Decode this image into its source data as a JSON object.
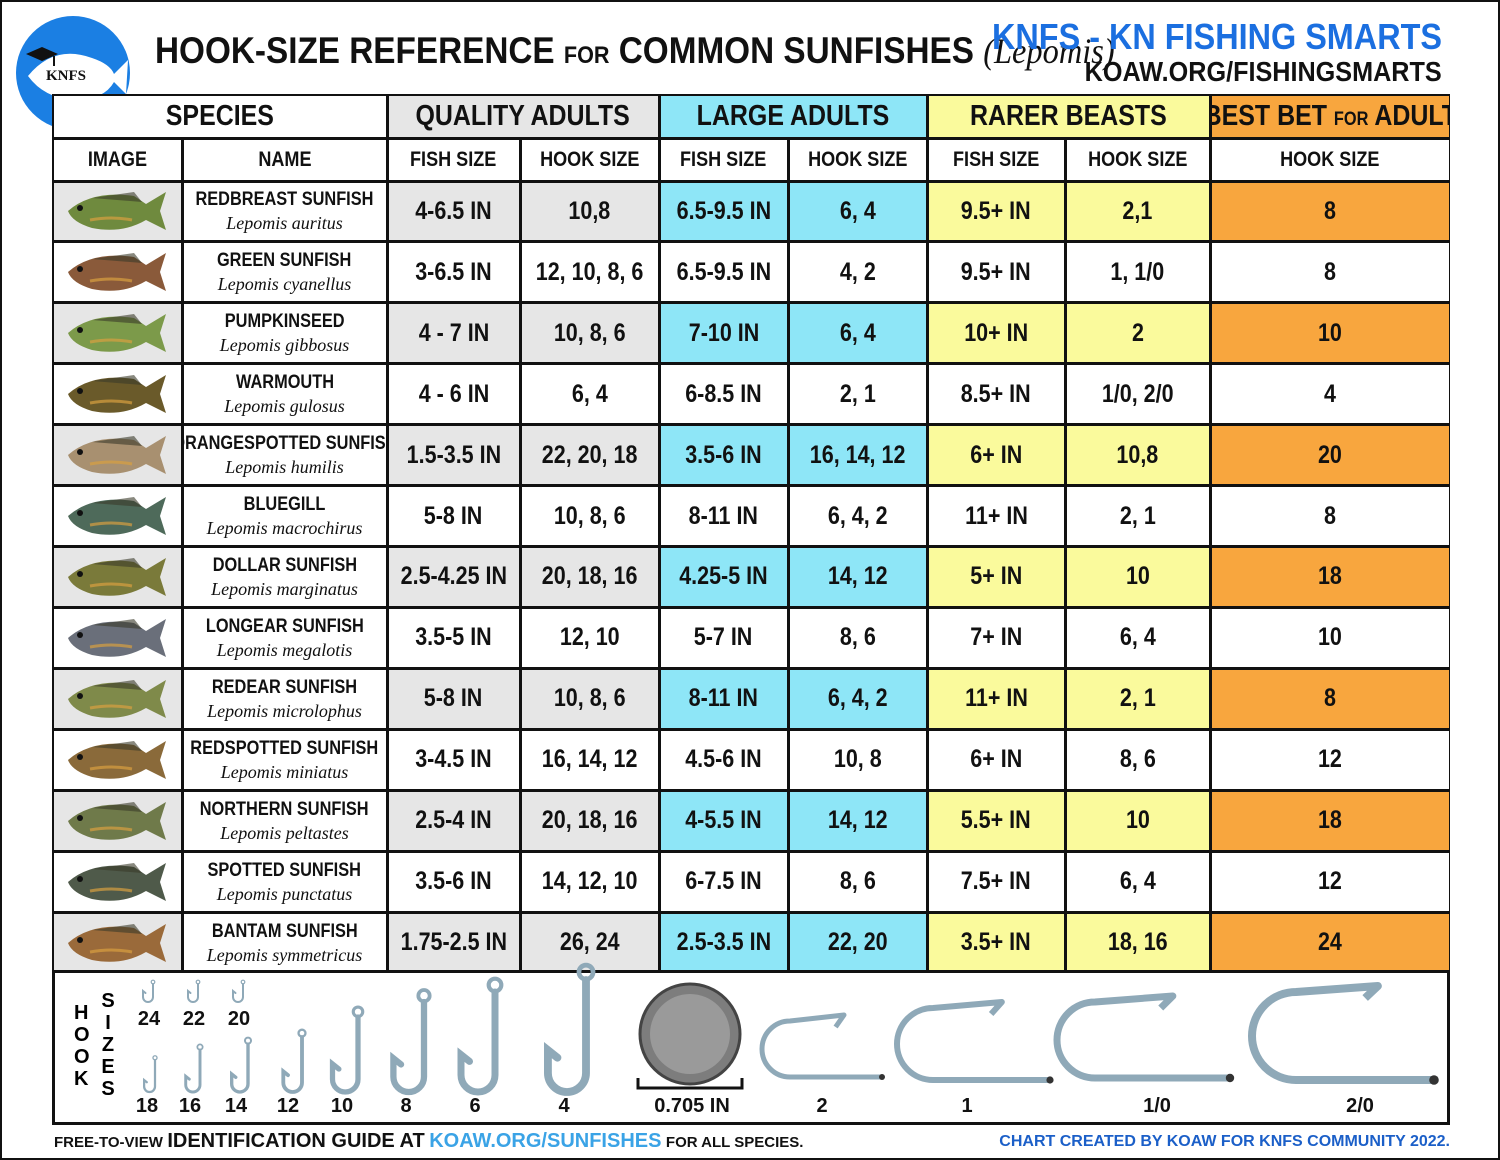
{
  "header": {
    "logo": "KNFS",
    "title_main": "HOOK-SIZE REFERENCE",
    "title_for": "FOR",
    "title_rest": "COMMON SUNFISHES",
    "title_genus": "(Lepomis)",
    "brand": "KNFS - KN FISHING SMARTS",
    "url": "KOAW.ORG/FISHINGSMARTS"
  },
  "table": {
    "groups": [
      "SPECIES",
      "QUALITY ADULTS",
      "LARGE ADULTS",
      "RARER BEASTS",
      {
        "main": "BEST BET",
        "small": "FOR",
        "end": "ADULT"
      }
    ],
    "columns": [
      "IMAGE",
      "NAME",
      "FISH SIZE",
      "HOOK SIZE",
      "FISH SIZE",
      "HOOK SIZE",
      "FISH SIZE",
      "HOOK SIZE",
      "HOOK SIZE"
    ],
    "rows": [
      {
        "name": "REDBREAST SUNFISH",
        "scientific": "Lepomis auritus",
        "cells": [
          "4-6.5 IN",
          "10,8",
          "6.5-9.5 IN",
          "6, 4",
          "9.5+ IN",
          "2,1",
          "8"
        ]
      },
      {
        "name": "GREEN SUNFISH",
        "scientific": "Lepomis cyanellus",
        "cells": [
          "3-6.5 IN",
          "12, 10, 8, 6",
          "6.5-9.5 IN",
          "4, 2",
          "9.5+ IN",
          "1, 1/0",
          "8"
        ]
      },
      {
        "name": "PUMPKINSEED",
        "scientific": "Lepomis gibbosus",
        "cells": [
          "4 - 7 IN",
          "10, 8, 6",
          "7-10 IN",
          "6, 4",
          "10+ IN",
          "2",
          "10"
        ]
      },
      {
        "name": "WARMOUTH",
        "scientific": "Lepomis gulosus",
        "cells": [
          "4 - 6 IN",
          "6, 4",
          "6-8.5 IN",
          "2, 1",
          "8.5+ IN",
          "1/0, 2/0",
          "4"
        ]
      },
      {
        "name": "ORANGESPOTTED SUNFISH",
        "scientific": "Lepomis humilis",
        "cells": [
          "1.5-3.5 IN",
          "22, 20, 18",
          "3.5-6 IN",
          "16, 14, 12",
          "6+ IN",
          "10,8",
          "20"
        ]
      },
      {
        "name": "BLUEGILL",
        "scientific": "Lepomis macrochirus",
        "cells": [
          "5-8 IN",
          "10, 8, 6",
          "8-11 IN",
          "6, 4, 2",
          "11+ IN",
          "2, 1",
          "8"
        ]
      },
      {
        "name": "DOLLAR SUNFISH",
        "scientific": "Lepomis marginatus",
        "cells": [
          "2.5-4.25 IN",
          "20, 18, 16",
          "4.25-5 IN",
          "14, 12",
          "5+ IN",
          "10",
          "18"
        ]
      },
      {
        "name": "LONGEAR SUNFISH",
        "scientific": "Lepomis megalotis",
        "cells": [
          "3.5-5 IN",
          "12, 10",
          "5-7 IN",
          "8, 6",
          "7+ IN",
          "6, 4",
          "10"
        ]
      },
      {
        "name": "REDEAR SUNFISH",
        "scientific": "Lepomis microlophus",
        "cells": [
          "5-8 IN",
          "10, 8, 6",
          "8-11 IN",
          "6, 4, 2",
          "11+ IN",
          "2, 1",
          "8"
        ]
      },
      {
        "name": "REDSPOTTED SUNFISH",
        "scientific": "Lepomis miniatus",
        "cells": [
          "3-4.5 IN",
          "16, 14, 12",
          "4.5-6 IN",
          "10, 8",
          "6+ IN",
          "8, 6",
          "12"
        ]
      },
      {
        "name": "NORTHERN SUNFISH",
        "scientific": "Lepomis peltastes",
        "cells": [
          "2.5-4 IN",
          "20, 18, 16",
          "4-5.5 IN",
          "14, 12",
          "5.5+ IN",
          "10",
          "18"
        ]
      },
      {
        "name": "SPOTTED SUNFISH",
        "scientific": "Lepomis punctatus",
        "cells": [
          "3.5-6 IN",
          "14, 12, 10",
          "6-7.5 IN",
          "8, 6",
          "7.5+ IN",
          "6, 4",
          "12"
        ]
      },
      {
        "name": "BANTAM SUNFISH",
        "scientific": "Lepomis symmetricus",
        "cells": [
          "1.75-2.5 IN",
          "26, 24",
          "2.5-3.5 IN",
          "22, 20",
          "3.5+ IN",
          "18, 16",
          "24"
        ]
      }
    ]
  },
  "hooks": {
    "title_1": "HOOK",
    "title_2": "SIZES",
    "small_sizes": [
      "24",
      "22",
      "20"
    ],
    "sizes": [
      "18",
      "16",
      "14",
      "12",
      "10",
      "8",
      "6",
      "4"
    ],
    "coin": "0.705 IN",
    "large_sizes": [
      "2",
      "1",
      "1/0",
      "2/0"
    ]
  },
  "footer": {
    "pre": "FREE-TO-VIEW",
    "guide": "IDENTIFICATION GUIDE AT",
    "link": "KOAW.ORG/SUNFISHES",
    "post": "FOR ALL SPECIES.",
    "credit": "CHART CREATED BY KOAW FOR KNFS COMMUNITY 2022."
  }
}
